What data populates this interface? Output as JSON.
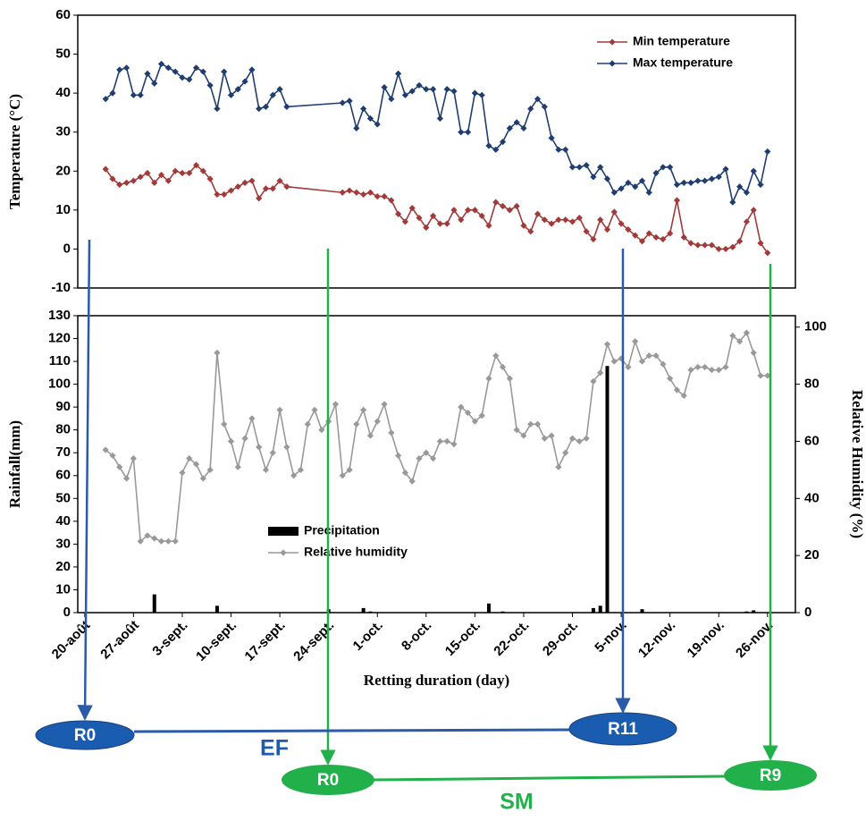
{
  "chart_data": [
    {
      "type": "line",
      "ylabel": "Temperature (°C)",
      "xlim": [
        -1,
        102
      ],
      "ylim": [
        -10,
        60
      ],
      "yticks": [
        -10,
        0,
        10,
        20,
        30,
        40,
        50,
        60
      ],
      "legend": "upper right",
      "series": [
        {
          "name": "Min temperature",
          "color": "#a33a3a",
          "x": [
            3,
            4,
            5,
            6,
            7,
            8,
            9,
            10,
            11,
            12,
            13,
            14,
            15,
            16,
            17,
            18,
            19,
            20,
            21,
            22,
            23,
            24,
            25,
            26,
            27,
            28,
            29,
            37,
            38,
            39,
            40,
            41,
            42,
            43,
            44,
            45,
            46,
            47,
            48,
            49,
            50,
            51,
            52,
            53,
            54,
            55,
            56,
            57,
            58,
            59,
            60,
            61,
            62,
            63,
            64,
            65,
            66,
            67,
            68,
            69,
            70,
            71,
            72,
            73,
            74,
            75,
            76,
            77,
            78,
            79,
            80,
            81,
            82,
            83,
            84,
            85,
            86,
            87,
            88,
            89,
            90,
            91,
            92,
            93,
            94,
            95,
            96,
            97,
            98
          ],
          "values": [
            20.5,
            18,
            16.5,
            17,
            17.5,
            18.5,
            19.5,
            17,
            19,
            17.5,
            20,
            19.5,
            19.5,
            21.5,
            20,
            18,
            14,
            14,
            15,
            16,
            17,
            17.5,
            13,
            15.5,
            15.5,
            17.5,
            16,
            14.5,
            15,
            14.5,
            14,
            14.5,
            13.5,
            13.5,
            12.5,
            9,
            7,
            10.5,
            8,
            5.5,
            8.5,
            6.5,
            6.5,
            10,
            7.5,
            10,
            10,
            8.5,
            6,
            12,
            11,
            10,
            11,
            6,
            4.5,
            9,
            7.5,
            6.5,
            7.5,
            7.5,
            7,
            8,
            4.5,
            2.5,
            7.5,
            5,
            9.5,
            6.5,
            5,
            3.5,
            2,
            4,
            3,
            2.5,
            4,
            12.5,
            3,
            1.5,
            1,
            1,
            1,
            0,
            0,
            0.5,
            2,
            7,
            10,
            1.5,
            -1
          ]
        },
        {
          "name": "Max temperature",
          "color": "#1f3d6e",
          "x": [
            3,
            4,
            5,
            6,
            7,
            8,
            9,
            10,
            11,
            12,
            13,
            14,
            15,
            16,
            17,
            18,
            19,
            20,
            21,
            22,
            23,
            24,
            25,
            26,
            27,
            28,
            29,
            37,
            38,
            39,
            40,
            41,
            42,
            43,
            44,
            45,
            46,
            47,
            48,
            49,
            50,
            51,
            52,
            53,
            54,
            55,
            56,
            57,
            58,
            59,
            60,
            61,
            62,
            63,
            64,
            65,
            66,
            67,
            68,
            69,
            70,
            71,
            72,
            73,
            74,
            75,
            76,
            77,
            78,
            79,
            80,
            81,
            82,
            83,
            84,
            85,
            86,
            87,
            88,
            89,
            90,
            91,
            92,
            93,
            94,
            95,
            96,
            97,
            98
          ],
          "values": [
            38.5,
            40,
            46,
            46.5,
            39.5,
            39.5,
            45,
            42.5,
            47.5,
            46.5,
            45.5,
            44,
            43.5,
            46.5,
            45.5,
            42,
            36,
            45.5,
            39.5,
            41,
            43,
            46,
            36,
            36.5,
            39.5,
            41,
            36.5,
            37.5,
            38,
            31,
            36,
            33.5,
            32,
            41.5,
            38.5,
            45,
            39.5,
            40.5,
            42,
            41,
            41,
            33.5,
            41,
            40.5,
            30,
            30,
            40,
            39.5,
            26.5,
            25.5,
            27.5,
            31,
            32.5,
            31,
            36,
            38.5,
            36.5,
            28.5,
            25.5,
            25.5,
            21,
            21,
            21.5,
            18.5,
            21,
            18,
            14.5,
            15.5,
            17,
            16,
            17.5,
            14.5,
            19.5,
            21,
            21,
            16.5,
            17,
            17,
            17.5,
            17.5,
            18,
            18.5,
            20.5,
            12,
            16,
            14.5,
            20,
            16.5,
            25
          ]
        }
      ]
    },
    {
      "type": "combo",
      "ylabel": "Rainfall(mm)",
      "y2label": "Relative Humidity (%)",
      "xlabel": "Retting duration (day)",
      "xlim": [
        -1,
        102
      ],
      "ylim": [
        0,
        130
      ],
      "yticks": [
        0,
        10,
        20,
        30,
        40,
        50,
        60,
        70,
        80,
        90,
        100,
        110,
        120,
        130
      ],
      "y2lim": [
        0,
        104
      ],
      "y2ticks": [
        0,
        20,
        40,
        60,
        80,
        100
      ],
      "legend": "center",
      "xticks": [
        {
          "value": 0,
          "label": "20-août"
        },
        {
          "value": 7,
          "label": "27-août"
        },
        {
          "value": 14,
          "label": "3-sept."
        },
        {
          "value": 21,
          "label": "10-sept."
        },
        {
          "value": 28,
          "label": "17-sept."
        },
        {
          "value": 35,
          "label": "24-sept."
        },
        {
          "value": 42,
          "label": "1-oct."
        },
        {
          "value": 49,
          "label": "8-oct."
        },
        {
          "value": 56,
          "label": "15-oct."
        },
        {
          "value": 63,
          "label": "22-oct."
        },
        {
          "value": 70,
          "label": "29-oct."
        },
        {
          "value": 77,
          "label": "5-nov."
        },
        {
          "value": 84,
          "label": "12-nov."
        },
        {
          "value": 91,
          "label": "19-nov."
        },
        {
          "value": 98,
          "label": "26-nov."
        }
      ],
      "series": [
        {
          "name": "Precipitation",
          "type": "bar",
          "color": "#000000",
          "x": [
            10,
            19,
            35,
            40,
            41,
            58,
            60,
            73,
            74,
            75,
            80,
            95,
            96
          ],
          "values": [
            8,
            3,
            1.5,
            2,
            0.5,
            4,
            0.5,
            2,
            3,
            108,
            1.5,
            0.5,
            1
          ]
        },
        {
          "name": "Relative humidity",
          "type": "line",
          "axis": "y2",
          "color": "#999999",
          "x": [
            3,
            4,
            5,
            6,
            7,
            8,
            9,
            10,
            11,
            12,
            13,
            14,
            15,
            16,
            17,
            18,
            19,
            20,
            21,
            22,
            23,
            24,
            25,
            26,
            27,
            28,
            29,
            30,
            31,
            32,
            33,
            34,
            35,
            36,
            37,
            38,
            39,
            40,
            41,
            42,
            43,
            44,
            45,
            46,
            47,
            48,
            49,
            50,
            51,
            52,
            53,
            54,
            55,
            56,
            57,
            58,
            59,
            60,
            61,
            62,
            63,
            64,
            65,
            66,
            67,
            68,
            69,
            70,
            71,
            72,
            73,
            74,
            75,
            76,
            77,
            78,
            79,
            80,
            81,
            82,
            83,
            84,
            85,
            86,
            87,
            88,
            89,
            90,
            91,
            92,
            93,
            94,
            95,
            96,
            97,
            98
          ],
          "values": [
            57,
            55,
            51,
            47,
            54,
            25,
            27,
            26,
            25,
            25,
            25,
            49,
            54,
            52,
            47,
            50,
            91,
            66,
            60,
            51,
            61,
            68,
            58,
            50,
            56,
            71,
            58,
            48,
            50,
            66,
            71,
            64,
            67,
            73,
            48,
            50,
            66,
            71,
            62,
            67,
            73,
            63,
            55,
            49,
            46,
            54,
            56,
            54,
            60,
            60,
            59,
            72,
            70,
            67,
            69,
            82,
            90,
            86,
            82,
            64,
            62,
            66,
            66,
            61,
            62,
            51,
            56,
            61,
            60,
            61,
            81,
            84,
            94,
            88,
            89,
            86,
            95,
            88,
            90,
            90,
            87,
            82,
            78,
            76,
            85,
            86,
            86,
            85,
            85,
            86,
            97,
            95,
            98,
            91,
            83,
            83
          ]
        }
      ]
    }
  ],
  "diagram": {
    "nodes": [
      {
        "label": "R0"
      },
      {
        "label": "R11"
      },
      {
        "label": "R0"
      },
      {
        "label": "R9"
      }
    ],
    "edges": [
      {
        "label": "EF"
      },
      {
        "label": "SM"
      }
    ]
  }
}
